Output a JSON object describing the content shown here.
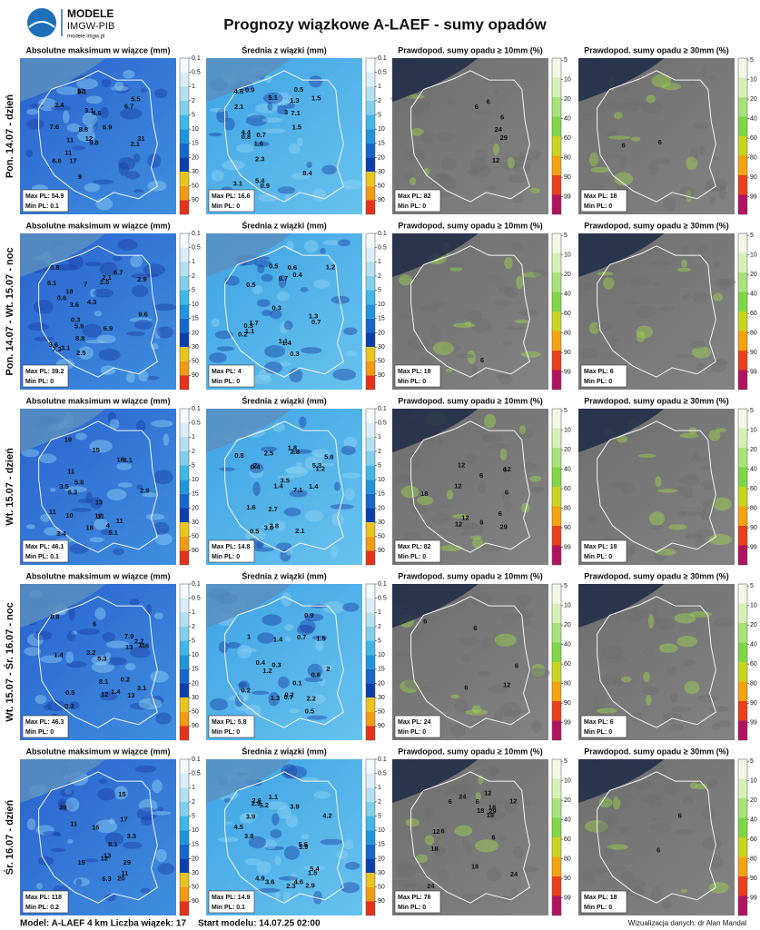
{
  "header": {
    "logo_title": "MODELE",
    "logo_subtitle": "IMGW-PIB",
    "logo_url": "modele.imgw.pl",
    "title": "Prognozy wiązkowe A-LAEF - sumy opadów"
  },
  "colorbars": [
    {
      "ticks": [
        0.1,
        0.5,
        1,
        2,
        5,
        10,
        15,
        20,
        30,
        50,
        90
      ],
      "colors": [
        "#f4fbff",
        "#d9eef8",
        "#b3e0f2",
        "#7fd0ec",
        "#3fb8e6",
        "#1e95dc",
        "#1468cc",
        "#0c3fae",
        "#e8c41c",
        "#f29b12",
        "#e5331a"
      ]
    },
    {
      "ticks": [
        5,
        10,
        20,
        40,
        60,
        80,
        90,
        99
      ],
      "colors": [
        "#f2f7e6",
        "#d6f0b8",
        "#a9e27a",
        "#7fd646",
        "#c8d41e",
        "#f2a410",
        "#e8401a",
        "#b01460"
      ]
    }
  ],
  "rows": [
    {
      "label": "Pon. 14.07 - dzień",
      "panels": [
        {
          "title": "Absolutne maksimum w wiązce (mm)",
          "max": "Max PL: 54.9",
          "min": "Min PL: 0.1",
          "labels": [
            "11",
            "12",
            "31",
            "7.6",
            "11",
            "17",
            "9",
            "6.9",
            "6.7",
            "8.8",
            "2.1",
            "2.4",
            "4.6",
            "12",
            "9.1",
            "6.6",
            "9.8",
            "5.5",
            "3.1"
          ]
        },
        {
          "title": "Średnia z wiązki (mm)",
          "max": "Max PL: 16.6",
          "min": "Min PL: 0",
          "labels": [
            "4.4",
            "5.1",
            "3",
            "3.1",
            "7.1",
            "5.4",
            "2.3",
            "1.5",
            "1.5",
            "0.9",
            "8.4",
            "0.5",
            "2.1",
            "0.9",
            "4.6",
            "1.6",
            "1.3",
            "0.7",
            "0.8"
          ]
        },
        {
          "title": "Prawdopod. sumy opadu ≥ 10mm (%)",
          "max": "Max PL: 82",
          "min": "Min PL: 0",
          "labels": [
            "12",
            "6",
            "29",
            "24",
            "6",
            "6"
          ]
        },
        {
          "title": "Prawdopod. sumy opadu ≥ 30mm (%)",
          "max": "Max PL: 18",
          "min": "Min PL: 0",
          "labels": [
            "6",
            "6"
          ]
        }
      ]
    },
    {
      "label": "Pon. 14.07 - Wt. 15.07 - noc",
      "panels": [
        {
          "title": "Absolutne maksimum w wiązce (mm)",
          "max": "Max PL: 39.2",
          "min": "Min PL: 0",
          "labels": [
            "3.6",
            "8.8",
            "2.1",
            "0.3",
            "2.5",
            "18",
            "3.1",
            "4.3",
            "6.1",
            "0.8",
            "9.6",
            "7",
            "3.6",
            "5.9",
            "6.9",
            "0.6",
            "6.7",
            "7.3",
            "2.9",
            "2.5"
          ]
        },
        {
          "title": "Średnia z wiązki (mm)",
          "max": "Max PL: 4",
          "min": "Min PL: 0",
          "labels": [
            "0.6",
            "1.4",
            "0.2",
            "0.3",
            "0.3",
            "1.7",
            "0.4",
            "1.1",
            "0.7",
            "1.1",
            "0.3",
            "0.5",
            "1.2",
            "1.3",
            "0.5",
            "0.7"
          ]
        },
        {
          "title": "Prawdopod. sumy opadu ≥ 10mm (%)",
          "max": "Max PL: 18",
          "min": "Min PL: 0",
          "labels": [
            "6"
          ]
        },
        {
          "title": "Prawdopod. sumy opadu ≥ 30mm (%)",
          "max": "Max PL: 6",
          "min": "Min PL: 0",
          "labels": []
        }
      ]
    },
    {
      "label": "Wt. 15.07 - dzień",
      "panels": [
        {
          "title": "Absolutne maksimum w wiązce (mm)",
          "max": "Max PL: 46.1",
          "min": "Min PL: 0.1",
          "labels": [
            "2.9",
            "19",
            "11",
            "15",
            "11",
            "6.3",
            "17",
            "4",
            "11",
            "18",
            "3.5",
            "5.8",
            "11",
            "5.1",
            "8.1",
            "10",
            "13",
            "3.4",
            "16"
          ]
        },
        {
          "title": "Średnia z wiązki (mm)",
          "max": "Max PL: 14.8",
          "min": "Min PL: 0",
          "labels": [
            "0.4",
            "7.1",
            "3.3",
            "2.7",
            "5.6",
            "5.3",
            "2.5",
            "2",
            "0.8",
            "2.8",
            "2.8",
            "0.5",
            "1.2",
            "1.8",
            "2.1",
            "1.6",
            "1.4",
            "1.4",
            "3.5"
          ]
        },
        {
          "title": "Prawdopod. sumy opadu ≥ 10mm (%)",
          "max": "Max PL: 82",
          "min": "Min PL: 0",
          "labels": [
            "29",
            "12",
            "12",
            "18",
            "12",
            "6",
            "6",
            "12",
            "6",
            "6",
            "6",
            "12"
          ]
        },
        {
          "title": "Prawdopod. sumy opadu ≥ 30mm (%)",
          "max": "Max PL: 18",
          "min": "Min PL: 0",
          "labels": []
        }
      ]
    },
    {
      "label": "Wt. 15.07 - Śr. 16.07 - noc",
      "panels": [
        {
          "title": "Absolutne maksimum w wiązce (mm)",
          "max": "Max PL: 46.3",
          "min": "Min PL: 0",
          "labels": [
            "5.3",
            "0.8",
            "1.4",
            "11",
            "0.5",
            "12",
            "2.7",
            "1.4",
            "7.9",
            "0.2",
            "13",
            "0.2",
            "13",
            "3.1",
            "7.6",
            "6",
            "3.2",
            "8.1"
          ]
        },
        {
          "title": "Średnia z wiązki (mm)",
          "max": "Max PL: 5.8",
          "min": "Min PL: 0",
          "labels": [
            "0.6",
            "0.2",
            "2",
            "0.1",
            "0.2",
            "0.4",
            "0.9",
            "2.2",
            "1.3",
            "0.7",
            "1",
            "0.5",
            "1.2",
            "1.5",
            "0.7",
            "0.3",
            "1.4"
          ]
        },
        {
          "title": "Prawdopod. sumy opadu ≥ 10mm (%)",
          "max": "Max PL: 24",
          "min": "Min PL: 0",
          "labels": [
            "6",
            "6",
            "12",
            "6",
            "6"
          ]
        },
        {
          "title": "Prawdopod. sumy opadu ≥ 30mm (%)",
          "max": "Max PL: 6",
          "min": "Min PL: 0",
          "labels": []
        }
      ]
    },
    {
      "label": "Śr. 16.07 - dzień",
      "panels": [
        {
          "title": "Absolutne maksimum w wiązce (mm)",
          "max": "Max PL: 118",
          "min": "Min PL: 0.2",
          "labels": [
            "20",
            "6.3",
            "3.3",
            "17",
            "19",
            "8.1",
            "11",
            "13",
            "11",
            "16",
            "15",
            "12",
            "29",
            "39"
          ]
        },
        {
          "title": "Średnia z wiązki (mm)",
          "max": "Max PL: 14.9",
          "min": "Min PL: 0.1",
          "labels": [
            "1.5",
            "1.1",
            "3.8",
            "5.6",
            "2.6",
            "2.3",
            "3.9",
            "4.9",
            "4.5",
            "3.9",
            "5.4",
            "2.9",
            "3.6",
            "5.2",
            "2.9",
            "4.6",
            "4.2",
            "3.9"
          ]
        },
        {
          "title": "Prawdopod. sumy opadu ≥ 10mm (%)",
          "max": "Max PL: 76",
          "min": "Min PL: 0",
          "labels": [
            "18",
            "18",
            "6",
            "29",
            "6",
            "18",
            "24",
            "6",
            "12",
            "24",
            "12",
            "12",
            "18",
            "6",
            "24",
            "18"
          ]
        },
        {
          "title": "Prawdopod. sumy opadu ≥ 30mm (%)",
          "max": "Max PL: 18",
          "min": "Min PL: 0",
          "labels": [
            "6",
            "6"
          ]
        }
      ]
    }
  ],
  "footer": {
    "model": "Model: A-LAEF 4 km Liczba wiązek: 17",
    "start": "Start modelu: 14.07.25 02:00",
    "credit": "Wizualizacja danych: dr Alan Mandal"
  }
}
